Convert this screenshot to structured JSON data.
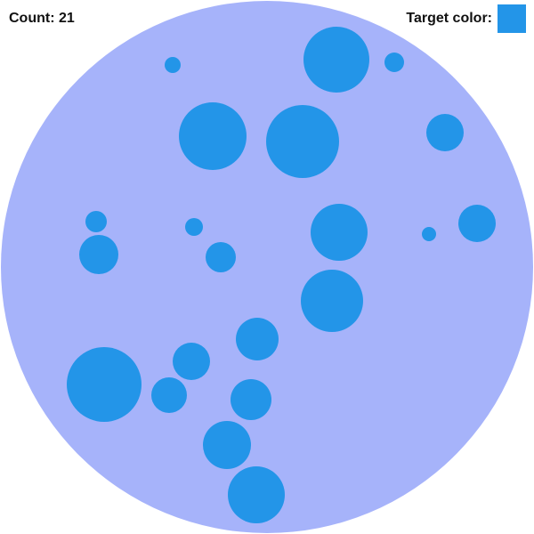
{
  "hud": {
    "count_label": "Count: 21",
    "target_label": "Target color:"
  },
  "colors": {
    "board": "#a6b3fa",
    "target": "#2395e8",
    "circle": "#2395e8"
  },
  "game": {
    "count": 21,
    "circle_count": 21
  }
}
